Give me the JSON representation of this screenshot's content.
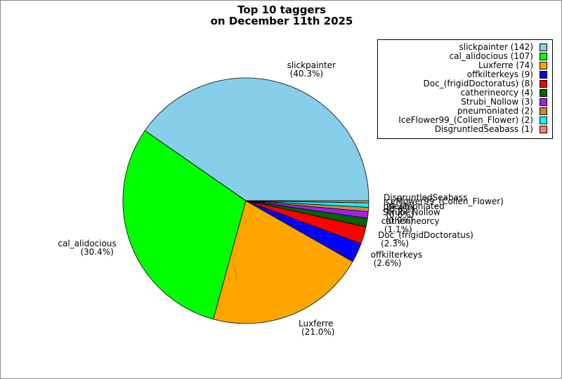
{
  "chart_data": {
    "type": "pie",
    "title": "Top 10 taggers\non December 11th 2025",
    "slices": [
      {
        "label": "slickpainter",
        "value": 142,
        "percent_label": "(40.3%)",
        "legend_label": "slickpainter (142)",
        "color": "#87ceeb"
      },
      {
        "label": "cal_alidocious",
        "value": 107,
        "percent_label": "(30.4%)",
        "legend_label": "cal_alidocious (107)",
        "color": "#00ff00"
      },
      {
        "label": "Luxferre",
        "value": 74,
        "percent_label": "(21.0%)",
        "legend_label": "Luxferre (74)",
        "color": "#ffa500"
      },
      {
        "label": "offkilterkeys",
        "value": 9,
        "percent_label": "(2.6%)",
        "legend_label": "offkilterkeys (9)",
        "color": "#0000ff"
      },
      {
        "label": "Doc_(frigidDoctoratus)",
        "value": 8,
        "percent_label": "(2.3%)",
        "legend_label": "Doc_(frigidDoctoratus) (8)",
        "color": "#ff0000"
      },
      {
        "label": "catherineorcy",
        "value": 4,
        "percent_label": "(1.1%)",
        "legend_label": "catherineorcy (4)",
        "color": "#006400"
      },
      {
        "label": "Strubi_Nollow",
        "value": 3,
        "percent_label": "(0.9%)",
        "legend_label": "Strubi_Nollow (3)",
        "color": "#a020f0"
      },
      {
        "label": "pneumoniated",
        "value": 2,
        "percent_label": "(0.6%)",
        "legend_label": "pneumoniated (2)",
        "color": "#cd853f"
      },
      {
        "label": "IceFlower99_(Collen_Flower)",
        "value": 2,
        "percent_label": "(0.6%)",
        "legend_label": "IceFlower99_(Collen_Flower) (2)",
        "color": "#00ffff"
      },
      {
        "label": "DisgruntledSeabass",
        "value": 1,
        "percent_label": "(0.3%)",
        "legend_label": "DisgruntledSeabass (1)",
        "color": "#fa8072"
      }
    ],
    "legend_position": "top-right"
  }
}
